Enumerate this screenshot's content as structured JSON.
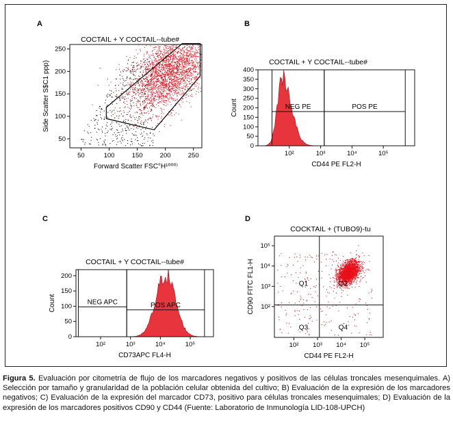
{
  "caption": {
    "label": "Figura 5.",
    "text": "Evaluación por citometría de flujo de los marcadores negativos y positivos de las células troncales mesenquimales. A) Selección por tamaño y granularidad de la población celular obtenida del cultivo; B) Evaluación de la expresión de los marcadores negativos; C) Evaluación de la expresión del marcador CD73, positivo para células troncales mesenquimales; D) Evaluación de la expresión de los marcadores positivos CD90 y CD44 (Fuente: Laboratorio de Inmunología LID-108-UPCH)"
  },
  "colors": {
    "events": "#e8101a",
    "events_outside_gate": "#111111",
    "histogram_fill": "#e8343c",
    "gate": "#111111"
  },
  "chart_data": [
    {
      "panel": "A",
      "type": "scatter",
      "title": "COCTAIL + Y COCTAIL--tube#",
      "xlabel": "Forward Scatter FSC°H¹⁰⁰⁰⁾",
      "ylabel": "Side Scatter S$C1 ppp)",
      "xlim": [
        30,
        265
      ],
      "ylim": [
        30,
        260
      ],
      "xticks": [
        "50",
        "100",
        "150",
        "200",
        "250"
      ],
      "yticks": [
        "50",
        "100",
        "150",
        "200",
        "250"
      ],
      "gate": {
        "shape": "polygon",
        "vertices": [
          [
            95,
            120
          ],
          [
            230,
            262
          ],
          [
            262,
            262
          ],
          [
            262,
            190
          ],
          [
            180,
            70
          ],
          [
            95,
            95
          ]
        ]
      },
      "population": {
        "center": [
          205,
          195
        ],
        "density": "high, inside gate"
      }
    },
    {
      "panel": "B",
      "type": "histogram",
      "title": "COCTAIL + Y COCTAIL--tube#",
      "xlabel": "CD44 PE FL2-H",
      "ylabel": "Count",
      "xscale": "log",
      "xlim": [
        10,
        1000000
      ],
      "ylim": [
        0,
        400
      ],
      "xticks": [
        "10²",
        "10³",
        "10⁴",
        "10⁵"
      ],
      "yticks": [
        "0",
        "50",
        "100",
        "150",
        "200",
        "250",
        "300",
        "350",
        "400"
      ],
      "peak": {
        "x": 60,
        "count": 360
      },
      "gates": [
        {
          "label": "NEG PE",
          "x_range": [
            28,
            1300
          ],
          "marker_y": 180
        },
        {
          "label": "POS PE",
          "x_range": [
            1300,
            500000
          ],
          "marker_y": 180
        }
      ]
    },
    {
      "panel": "C",
      "type": "histogram",
      "title": "COCTAIL + Y COCTAIL--tube#",
      "xlabel": "CD73APC FL4-H",
      "ylabel": "Count",
      "xscale": "log",
      "xlim": [
        15,
        600000
      ],
      "ylim": [
        0,
        220
      ],
      "xticks": [
        "10²",
        "10³",
        "10⁴",
        "10⁵"
      ],
      "yticks": [
        "0",
        "50",
        "100",
        "150",
        "200"
      ],
      "peak": {
        "x": 15000,
        "count": 205
      },
      "gates": [
        {
          "label": "NEG APC",
          "x_range": [
            18,
            750
          ],
          "marker_y": 98
        },
        {
          "label": "POS APC",
          "x_range": [
            750,
            300000
          ],
          "marker_y": 88
        }
      ]
    },
    {
      "panel": "D",
      "type": "scatter",
      "title": "COCKTAIL + (TUBO9)-tu",
      "xlabel": "CD44 PE FL2-H",
      "ylabel": "CD90 FITC FL1-H",
      "xscale": "log",
      "yscale": "log",
      "xlim": [
        15,
        600000
      ],
      "ylim": [
        3,
        300000
      ],
      "xticks": [
        "10²",
        "10³",
        "10⁴",
        "10⁵"
      ],
      "yticks": [
        "10²",
        "10³",
        "10⁴",
        "10⁵"
      ],
      "quadrant_split": {
        "x": 1200,
        "y": 120
      },
      "quadrants": [
        "Q1",
        "Q2",
        "Q3",
        "Q4"
      ],
      "population": {
        "center": [
          20000,
          5000
        ],
        "quadrant": "Q2"
      }
    }
  ]
}
